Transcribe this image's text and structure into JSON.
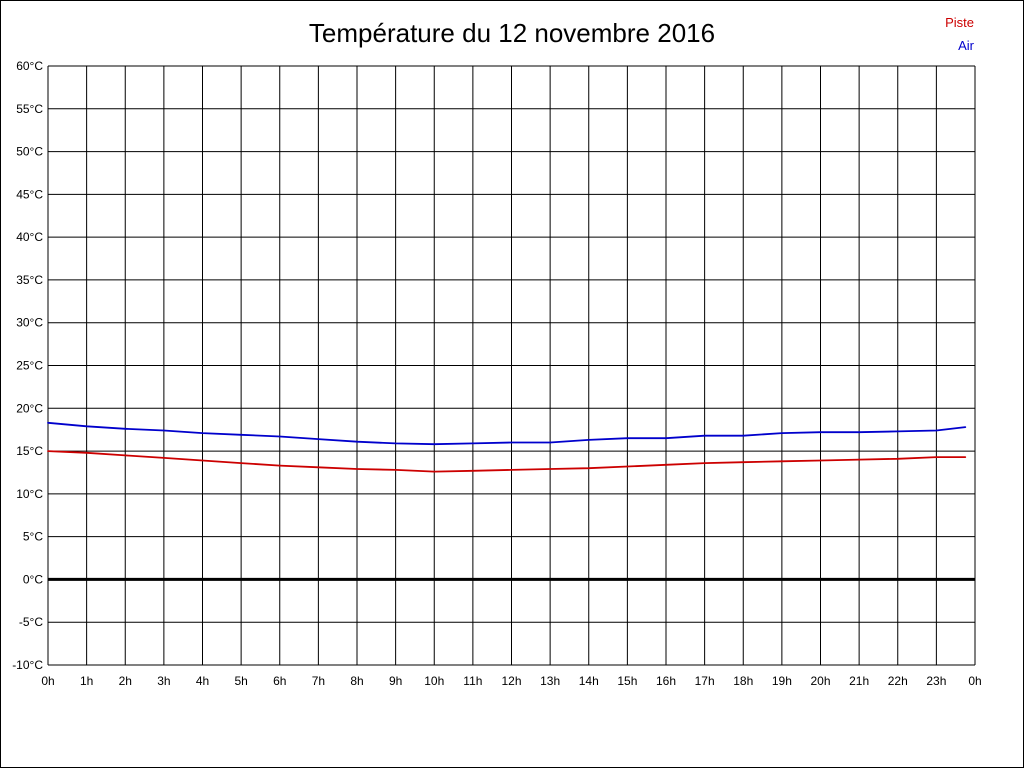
{
  "header": {
    "title": "Température du 12 novembre 2016"
  },
  "legend": [
    {
      "label": "Piste",
      "color": "#cc0000"
    },
    {
      "label": "Air",
      "color": "#0000cc"
    }
  ],
  "chart_data": {
    "type": "line",
    "title": "Température du 12 novembre 2016",
    "xlabel": "",
    "ylabel": "",
    "xlim": [
      0,
      24
    ],
    "ylim": [
      -10,
      60
    ],
    "grid": true,
    "grid_color": "#000000",
    "zero_line": {
      "value": 0,
      "color": "#000000",
      "width": 3
    },
    "legend_position": "top-right",
    "x_ticks": [
      0,
      1,
      2,
      3,
      4,
      5,
      6,
      7,
      8,
      9,
      10,
      11,
      12,
      13,
      14,
      15,
      16,
      17,
      18,
      19,
      20,
      21,
      22,
      23,
      24
    ],
    "x_tick_labels": [
      "0h",
      "1h",
      "2h",
      "3h",
      "4h",
      "5h",
      "6h",
      "7h",
      "8h",
      "9h",
      "10h",
      "11h",
      "12h",
      "13h",
      "14h",
      "15h",
      "16h",
      "17h",
      "18h",
      "19h",
      "20h",
      "21h",
      "22h",
      "23h",
      "0h"
    ],
    "y_ticks": [
      60,
      55,
      50,
      45,
      40,
      35,
      30,
      25,
      20,
      15,
      10,
      5,
      0,
      -5,
      -10
    ],
    "y_tick_labels": [
      "60°C",
      "55°C",
      "50°C",
      "45°C",
      "40°C",
      "35°C",
      "30°C",
      "25°C",
      "20°C",
      "15°C",
      "10°C",
      "5°C",
      "0°C",
      "-5°C",
      "-10°C"
    ],
    "x": [
      0,
      1,
      2,
      3,
      4,
      5,
      6,
      7,
      8,
      9,
      10,
      11,
      12,
      13,
      14,
      15,
      16,
      17,
      18,
      19,
      20,
      21,
      22,
      23,
      23.75
    ],
    "series": [
      {
        "name": "Piste",
        "color": "#cc0000",
        "values": [
          15.0,
          14.8,
          14.5,
          14.2,
          13.9,
          13.6,
          13.3,
          13.1,
          12.9,
          12.8,
          12.6,
          12.7,
          12.8,
          12.9,
          13.0,
          13.2,
          13.4,
          13.6,
          13.7,
          13.8,
          13.9,
          14.0,
          14.1,
          14.3,
          14.3
        ]
      },
      {
        "name": "Air",
        "color": "#0000cc",
        "values": [
          18.3,
          17.9,
          17.6,
          17.4,
          17.1,
          16.9,
          16.7,
          16.4,
          16.1,
          15.9,
          15.8,
          15.9,
          16.0,
          16.0,
          16.3,
          16.5,
          16.5,
          16.8,
          16.8,
          17.1,
          17.2,
          17.2,
          17.3,
          17.4,
          17.8
        ]
      }
    ]
  }
}
